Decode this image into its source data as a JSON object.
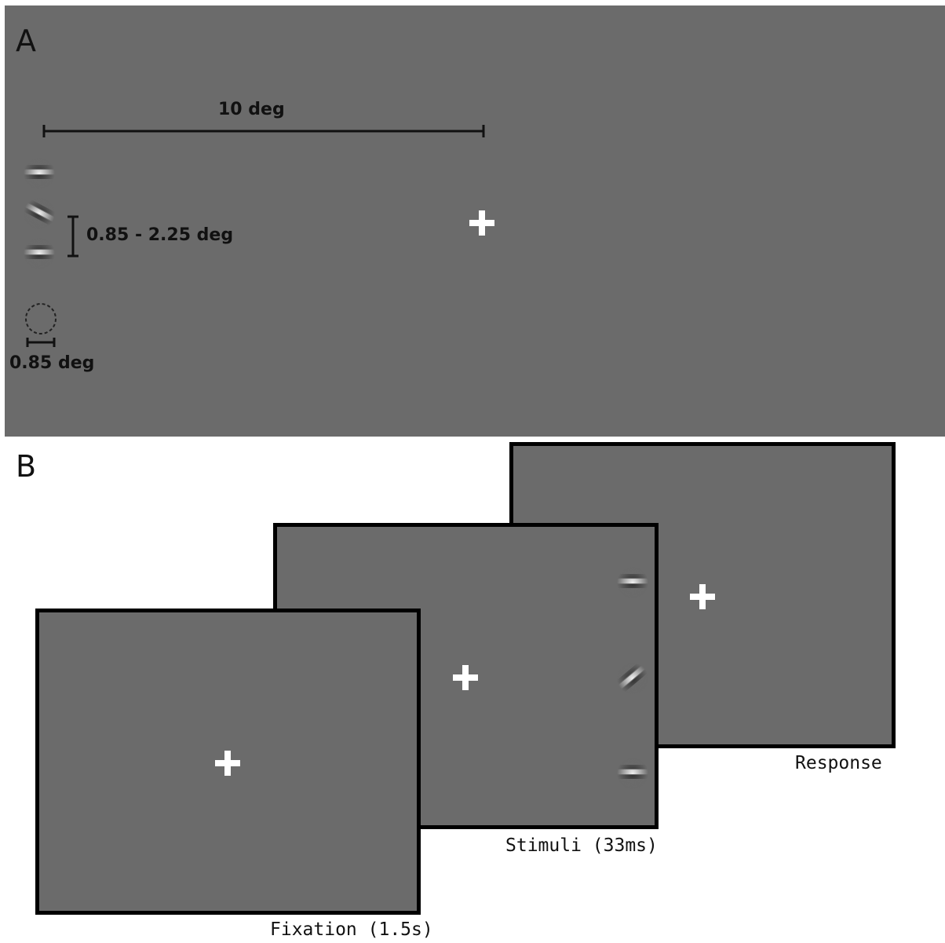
{
  "panel_a": {
    "letter": "A",
    "distance_label": "10 deg",
    "spacing_label": "0.85 - 2.25 deg",
    "size_label": "0.85 deg"
  },
  "panel_b": {
    "letter": "B",
    "frames": [
      {
        "id": "fixation",
        "caption": "Fixation (1.5s)"
      },
      {
        "id": "stimuli",
        "caption": "Stimuli (33ms)"
      },
      {
        "id": "response",
        "caption": "Response"
      }
    ]
  },
  "colors": {
    "background": "#6b6b6b",
    "fixation_cross": "#ffffff",
    "frame_border": "#000000"
  }
}
